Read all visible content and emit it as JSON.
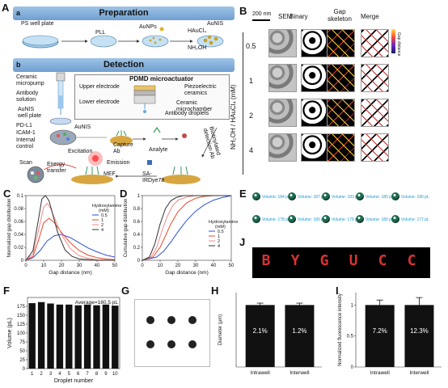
{
  "panels": {
    "A": "A",
    "B": "B",
    "C": "C",
    "D": "D",
    "E": "E",
    "F": "F",
    "G": "G",
    "H": "H",
    "I": "I",
    "J": "J"
  },
  "prep": {
    "sub": "a",
    "title": "Preparation",
    "ps_plate": "PS well plate",
    "pll": "PLL",
    "aunps": "AuNPs",
    "haucl4": "HAuCl₄",
    "nh2oh": "NH₂OH",
    "aunis": "AuNIS"
  },
  "detect": {
    "sub": "b",
    "title": "Detection",
    "micropump": [
      "Ceramic",
      "micropump"
    ],
    "antibody_solution": [
      "Antibody",
      "solution"
    ],
    "aunis_plate": [
      "AuNIS",
      "well plate"
    ],
    "pdmd": "PDMD microactuator",
    "upper_electrode": "Upper electrode",
    "lower_electrode": "Lower electrode",
    "piezo": [
      "Piezoelectric",
      "ceramics"
    ],
    "microchamber": [
      "Ceramic",
      "microchamber"
    ],
    "antibody_droplets": "Antibody droplets",
    "pdl1": "PD-L1",
    "icam1": "ICAM-1",
    "internal_control": [
      "Internal",
      "control"
    ],
    "aunis": "AuNIS",
    "capture_ab": [
      "Capture",
      "Ab"
    ],
    "analyte": "Analyte",
    "scan": "Scan",
    "excitation": "Excitation",
    "emission": "Emission",
    "energy_transfer": [
      "Energy",
      "transfer"
    ],
    "mef": "MEF",
    "sa_ir": [
      "SA-",
      "IRDye78"
    ],
    "biotinylated": [
      "Biotinylated",
      "detection Ab"
    ]
  },
  "B": {
    "scale_bar": "200 nm",
    "columns": [
      "SEM",
      "Binary",
      "Gap\nskeleton",
      "Merge"
    ],
    "rows": [
      "0.5",
      "1",
      "2",
      "4"
    ],
    "axis_label": "NH₂OH / HAuCl₄ (mM)",
    "colorbar_label": "Gap distance"
  },
  "C": {
    "chart_data": {
      "type": "line",
      "xlabel": "Gap distance (nm)",
      "ylabel": "Normalized gap distribution",
      "xlim": [
        0,
        50
      ],
      "ylim": [
        0,
        0.1
      ],
      "xticks": [
        0,
        10,
        20,
        30,
        40,
        50
      ],
      "yticks": [
        0,
        0.02,
        0.04,
        0.06,
        0.08,
        0.1
      ],
      "legend_title": [
        "Hydroxylamine",
        "(mM)"
      ],
      "legend_position": "top-right",
      "series": [
        {
          "name": "0.5",
          "color": "#2e4fd8",
          "x": [
            0,
            4,
            8,
            12,
            16,
            20,
            25,
            30,
            35,
            40,
            45,
            50
          ],
          "y": [
            0.0,
            0.004,
            0.015,
            0.03,
            0.038,
            0.04,
            0.035,
            0.027,
            0.019,
            0.013,
            0.008,
            0.005
          ]
        },
        {
          "name": "1",
          "color": "#e4472a",
          "x": [
            0,
            4,
            7,
            10,
            13,
            16,
            20,
            25,
            30,
            35,
            40,
            45,
            50
          ],
          "y": [
            0.0,
            0.006,
            0.03,
            0.058,
            0.065,
            0.058,
            0.043,
            0.027,
            0.015,
            0.008,
            0.004,
            0.002,
            0.001
          ]
        },
        {
          "name": "2",
          "color": "#f08a8a",
          "x": [
            0,
            4,
            7,
            10,
            12,
            14,
            16,
            20,
            25,
            30,
            35,
            40,
            50
          ],
          "y": [
            0.0,
            0.01,
            0.045,
            0.082,
            0.088,
            0.08,
            0.066,
            0.04,
            0.018,
            0.007,
            0.003,
            0.001,
            0.0
          ]
        },
        {
          "name": "4",
          "color": "#333333",
          "x": [
            0,
            4,
            7,
            9,
            11,
            13,
            15,
            18,
            22,
            26,
            30,
            40,
            50
          ],
          "y": [
            0.0,
            0.015,
            0.062,
            0.095,
            0.1,
            0.092,
            0.072,
            0.042,
            0.016,
            0.006,
            0.002,
            0.0,
            0.0
          ]
        }
      ]
    }
  },
  "D": {
    "chart_data": {
      "type": "line",
      "xlabel": "Gap distance (nm)",
      "ylabel": "Cumulative gap distribution",
      "xlim": [
        0,
        50
      ],
      "ylim": [
        0,
        1.0
      ],
      "xticks": [
        0,
        10,
        20,
        30,
        40,
        50
      ],
      "yticks": [
        0,
        0.2,
        0.4,
        0.6,
        0.8,
        1.0
      ],
      "legend_title": [
        "Hydroxylamine",
        "(mM)"
      ],
      "legend_position": "center-right",
      "series": [
        {
          "name": "0.5",
          "color": "#2e4fd8",
          "x": [
            0,
            8,
            12,
            16,
            20,
            25,
            30,
            35,
            40,
            45,
            50
          ],
          "y": [
            0.0,
            0.05,
            0.14,
            0.28,
            0.44,
            0.62,
            0.76,
            0.86,
            0.93,
            0.97,
            1.0
          ]
        },
        {
          "name": "1",
          "color": "#e4472a",
          "x": [
            0,
            6,
            10,
            13,
            16,
            20,
            25,
            30,
            35,
            40,
            50
          ],
          "y": [
            0.0,
            0.05,
            0.2,
            0.38,
            0.56,
            0.75,
            0.89,
            0.96,
            0.99,
            1.0,
            1.0
          ]
        },
        {
          "name": "2",
          "color": "#f08a8a",
          "x": [
            0,
            5,
            8,
            11,
            14,
            17,
            20,
            25,
            30,
            35,
            50
          ],
          "y": [
            0.0,
            0.05,
            0.2,
            0.45,
            0.68,
            0.84,
            0.93,
            0.98,
            1.0,
            1.0,
            1.0
          ]
        },
        {
          "name": "4",
          "color": "#333333",
          "x": [
            0,
            4,
            7,
            10,
            13,
            16,
            19,
            23,
            28,
            50
          ],
          "y": [
            0.0,
            0.05,
            0.25,
            0.56,
            0.8,
            0.92,
            0.97,
            1.0,
            1.0,
            1.0
          ]
        }
      ]
    }
  },
  "E": {
    "droplets": [
      "Volume: 184 pL",
      "Volume: 187 pL",
      "Volume: 183 pL",
      "Volume: 180 pL",
      "Volume: 180 pL",
      "Volume: 178 pL",
      "Volume: 180 pL",
      "Volume: 178 pL",
      "Volume: 180 pL",
      "Volume: 177 pL"
    ]
  },
  "F": {
    "chart_data": {
      "type": "bar",
      "categories": [
        "1",
        "2",
        "3",
        "4",
        "5",
        "6",
        "7",
        "8",
        "9",
        "10"
      ],
      "values": [
        184,
        187,
        183,
        180,
        180,
        178,
        180,
        178,
        180,
        177
      ],
      "xlabel": "Droplet number",
      "ylabel": "Volume (pL)",
      "ylim": [
        0,
        200
      ],
      "yticks": [
        0,
        25,
        50,
        75,
        100,
        125,
        150,
        175
      ],
      "annotation": "Average=180.5 pL"
    }
  },
  "H": {
    "chart_data": {
      "type": "bar",
      "categories": [
        "Intrawell",
        "Interwell"
      ],
      "values": [
        1.0,
        1.0
      ],
      "bar_labels": [
        "2.1%",
        "1.2%"
      ],
      "ylabel": "Diameter (μm)"
    }
  },
  "I": {
    "chart_data": {
      "type": "bar",
      "categories": [
        "Intrawell",
        "Interwell"
      ],
      "values": [
        1.0,
        1.0
      ],
      "errors": [
        0.08,
        0.12
      ],
      "bar_labels": [
        "7.2%",
        "12.3%"
      ],
      "ylabel": "Normalized fluorescence intensity",
      "ylim": [
        0,
        1.2
      ],
      "yticks": [
        0,
        0.5,
        1
      ]
    }
  },
  "J": {
    "letters": [
      "B",
      "Y",
      "G",
      "U",
      "C",
      "C"
    ]
  }
}
